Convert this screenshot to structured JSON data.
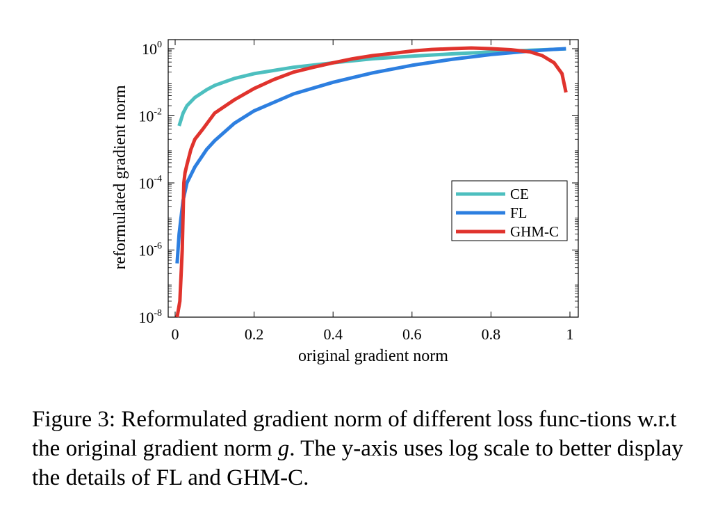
{
  "chart_data": {
    "type": "line",
    "title": "",
    "xlabel": "original gradient norm",
    "ylabel": "reformulated gradient norm",
    "xlim": [
      0,
      1
    ],
    "ylim_log10": [
      -8,
      0
    ],
    "yscale": "log",
    "x_ticks": [
      "0",
      "0.2",
      "0.4",
      "0.6",
      "0.8",
      "1"
    ],
    "x_tick_values": [
      0,
      0.2,
      0.4,
      0.6,
      0.8,
      1
    ],
    "y_ticks": [
      {
        "base": "10",
        "exp": "0",
        "value_log10": 0
      },
      {
        "base": "10",
        "exp": "-2",
        "value_log10": -2
      },
      {
        "base": "10",
        "exp": "-4",
        "value_log10": -4
      },
      {
        "base": "10",
        "exp": "-6",
        "value_log10": -6
      },
      {
        "base": "10",
        "exp": "-8",
        "value_log10": -8
      }
    ],
    "legend_position": "center-right",
    "series": [
      {
        "name": "CE",
        "color": "#4dbfbf",
        "x": [
          0.01,
          0.02,
          0.03,
          0.05,
          0.08,
          0.1,
          0.15,
          0.2,
          0.3,
          0.4,
          0.5,
          0.6,
          0.7,
          0.8,
          0.9,
          0.99
        ],
        "y": [
          0.005,
          0.012,
          0.02,
          0.035,
          0.06,
          0.08,
          0.13,
          0.18,
          0.28,
          0.38,
          0.5,
          0.6,
          0.7,
          0.8,
          0.9,
          0.99
        ]
      },
      {
        "name": "FL",
        "color": "#2d7fe0",
        "x": [
          0.005,
          0.01,
          0.02,
          0.03,
          0.05,
          0.08,
          0.1,
          0.15,
          0.2,
          0.3,
          0.4,
          0.5,
          0.6,
          0.7,
          0.8,
          0.9,
          0.95,
          0.99
        ],
        "y": [
          4e-07,
          3e-06,
          3e-05,
          0.0001,
          0.0003,
          0.001,
          0.0018,
          0.006,
          0.014,
          0.045,
          0.1,
          0.19,
          0.32,
          0.48,
          0.67,
          0.85,
          0.94,
          1.0
        ]
      },
      {
        "name": "GHM-C",
        "color": "#e0332d",
        "x": [
          0.005,
          0.012,
          0.018,
          0.022,
          0.025,
          0.03,
          0.04,
          0.05,
          0.07,
          0.1,
          0.15,
          0.2,
          0.25,
          0.3,
          0.35,
          0.4,
          0.45,
          0.5,
          0.55,
          0.6,
          0.65,
          0.7,
          0.75,
          0.8,
          0.85,
          0.9,
          0.93,
          0.96,
          0.98,
          0.99
        ],
        "y": [
          1e-08,
          3e-08,
          1e-06,
          0.0001,
          0.0002,
          0.00035,
          0.001,
          0.002,
          0.004,
          0.012,
          0.03,
          0.065,
          0.12,
          0.2,
          0.28,
          0.38,
          0.5,
          0.62,
          0.72,
          0.85,
          0.95,
          1.0,
          1.05,
          1.0,
          0.93,
          0.8,
          0.62,
          0.38,
          0.18,
          0.05
        ]
      }
    ]
  },
  "caption": {
    "prefix": "Figure 3: Reformulated gradient norm of different loss func-tions w.r.t the original gradient norm ",
    "variable": "g",
    "suffix": ". The y-axis uses log scale to better display the details of FL and GHM-C."
  }
}
